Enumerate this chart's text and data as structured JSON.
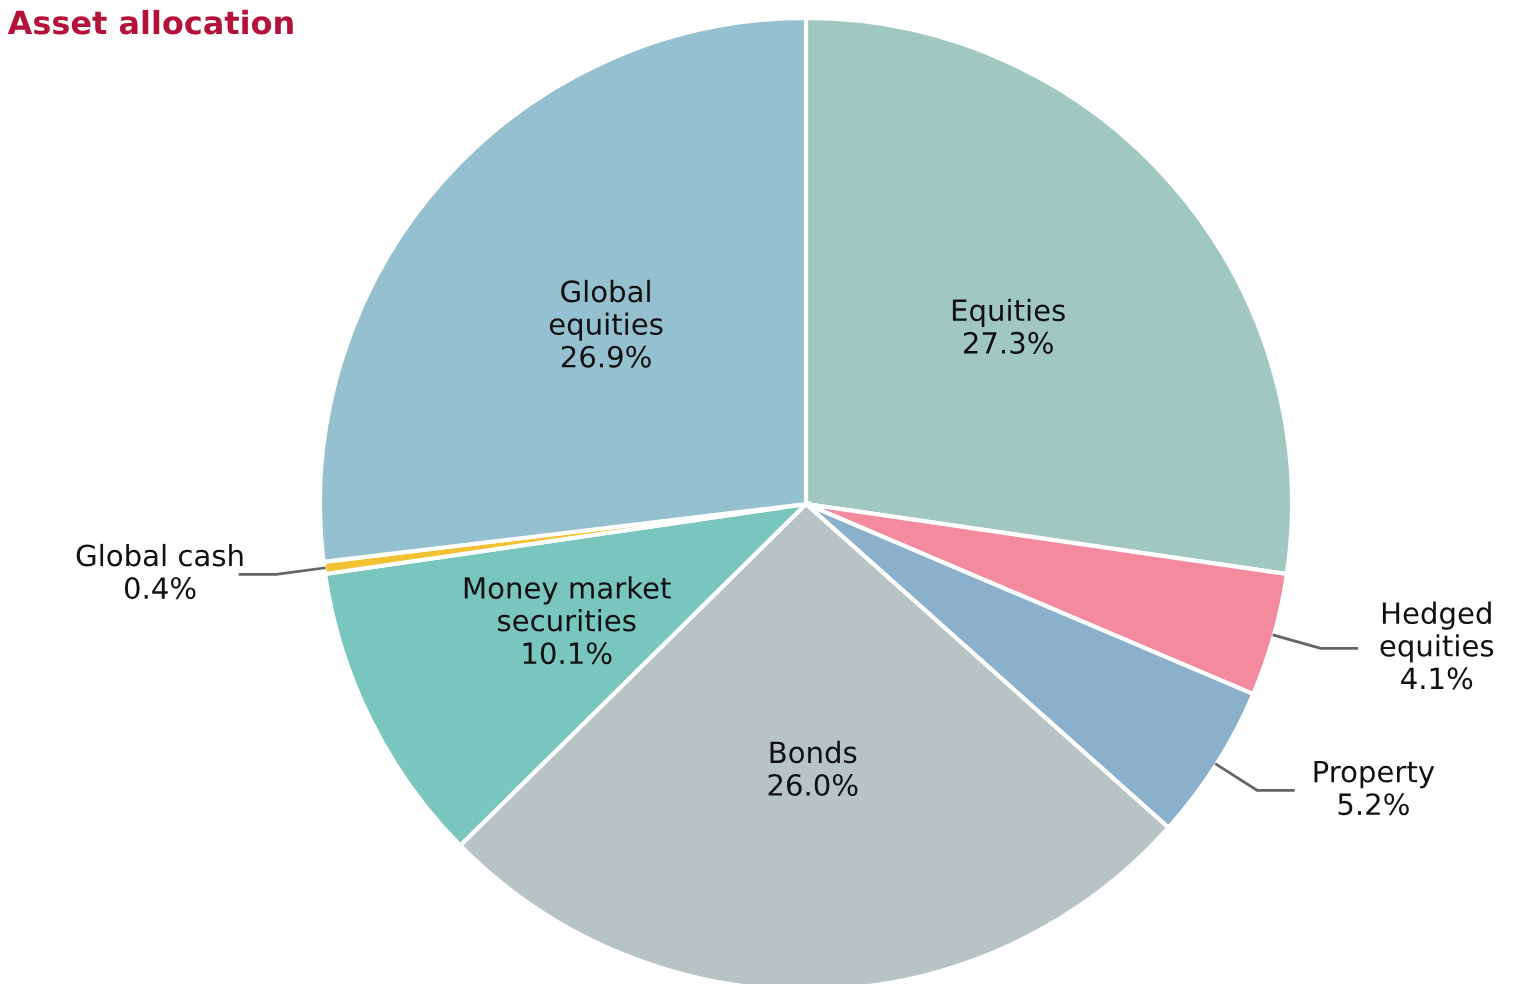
{
  "chart_data": {
    "type": "pie",
    "title": "Asset allocation",
    "categories": [
      "Equities",
      "Hedged\nequities",
      "Property",
      "Bonds",
      "Money market\nsecurities",
      "Global cash",
      "Global\nequities"
    ],
    "values": [
      27.3,
      4.1,
      5.2,
      26.0,
      10.1,
      0.4,
      26.9
    ],
    "colors": [
      "#a0c8c0",
      "#f48a9e",
      "#8ab0cc",
      "#b8c3c6",
      "#78c6be",
      "#f2c232",
      "#94c0d0"
    ],
    "value_labels": [
      "27.3%",
      "4.1%",
      "5.2%",
      "26.0%",
      "10.1%",
      "0.4%",
      "26.9%"
    ],
    "legend": false
  }
}
